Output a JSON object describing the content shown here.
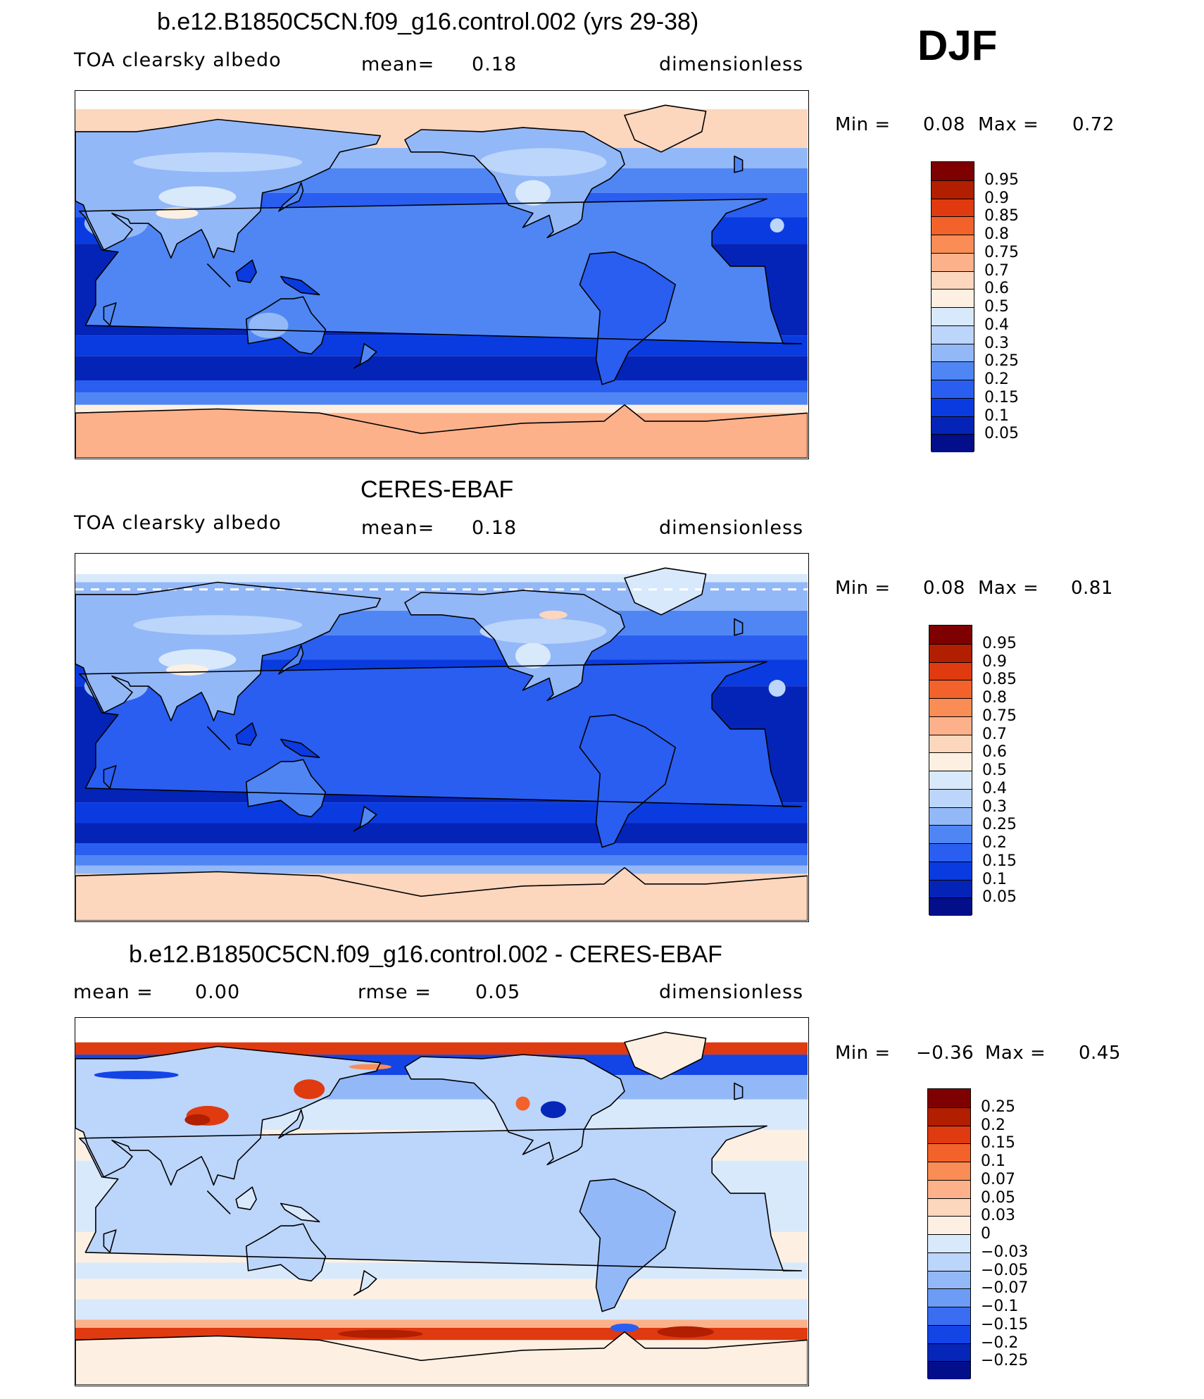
{
  "season": "DJF",
  "colorbar_colors_abs": [
    "#7f0000",
    "#b21e00",
    "#e03a10",
    "#f2622a",
    "#fa8c55",
    "#fcb18b",
    "#fcd6bd",
    "#fdf0e2",
    "#d9e9fc",
    "#bcd5fb",
    "#93b8f8",
    "#4f86f3",
    "#2a5ef0",
    "#0a3be0",
    "#0424b8",
    "#020e8a"
  ],
  "colorbar_colors_diff": [
    "#7f0000",
    "#b21e00",
    "#e03a10",
    "#f2622a",
    "#fa8c55",
    "#fcb18b",
    "#fcd6bd",
    "#fdf0e2",
    "#d9e9fc",
    "#bcd5fb",
    "#93b8f8",
    "#6c9cf5",
    "#3a6df2",
    "#1344e6",
    "#0526b9",
    "#020e8a"
  ],
  "panels": [
    {
      "title": "b.e12.B1850C5CN.f09_g16.control.002 (yrs 29-38)",
      "left_label": "TOA clearsky albedo",
      "mid_key": "mean=",
      "mid_value": "0.18",
      "units": "dimensionless",
      "min_key": "Min =",
      "min_value": "0.08",
      "max_key": "Max =",
      "max_value": "0.72",
      "colorbar_labels": [
        "0.95",
        "0.9",
        "0.85",
        "0.8",
        "0.75",
        "0.7",
        "0.6",
        "0.5",
        "0.4",
        "0.3",
        "0.25",
        "0.2",
        "0.15",
        "0.1",
        "0.05"
      ]
    },
    {
      "title": "CERES-EBAF",
      "left_label": "TOA clearsky albedo",
      "mid_key": "mean=",
      "mid_value": "0.18",
      "units": "dimensionless",
      "min_key": "Min =",
      "min_value": "0.08",
      "max_key": "Max =",
      "max_value": "0.81",
      "colorbar_labels": [
        "0.95",
        "0.9",
        "0.85",
        "0.8",
        "0.75",
        "0.7",
        "0.6",
        "0.5",
        "0.4",
        "0.3",
        "0.25",
        "0.2",
        "0.15",
        "0.1",
        "0.05"
      ]
    },
    {
      "title": "b.e12.B1850C5CN.f09_g16.control.002 - CERES-EBAF",
      "left_key": "mean =",
      "left_value": "0.00",
      "mid_key": "rmse =",
      "mid_value": "0.05",
      "units": "dimensionless",
      "min_key": "Min =",
      "min_value": "−0.36",
      "max_key": "Max =",
      "max_value": "0.45",
      "colorbar_labels": [
        "0.25",
        "0.2",
        "0.15",
        "0.1",
        "0.07",
        "0.05",
        "0.03",
        "0",
        "−0.03",
        "−0.05",
        "−0.07",
        "−0.1",
        "−0.15",
        "−0.2",
        "−0.25"
      ]
    }
  ],
  "chart_data": [
    {
      "type": "heatmap",
      "title": "b.e12.B1850C5CN.f09_g16.control.002 (yrs 29-38)",
      "variable": "TOA clearsky albedo",
      "season": "DJF",
      "units": "dimensionless",
      "mean": 0.18,
      "min": 0.08,
      "max": 0.72,
      "contour_levels": [
        0.05,
        0.1,
        0.15,
        0.2,
        0.25,
        0.3,
        0.4,
        0.5,
        0.6,
        0.7,
        0.75,
        0.8,
        0.85,
        0.9,
        0.95
      ]
    },
    {
      "type": "heatmap",
      "title": "CERES-EBAF",
      "variable": "TOA clearsky albedo",
      "season": "DJF",
      "units": "dimensionless",
      "mean": 0.18,
      "min": 0.08,
      "max": 0.81,
      "contour_levels": [
        0.05,
        0.1,
        0.15,
        0.2,
        0.25,
        0.3,
        0.4,
        0.5,
        0.6,
        0.7,
        0.75,
        0.8,
        0.85,
        0.9,
        0.95
      ]
    },
    {
      "type": "heatmap",
      "title": "b.e12.B1850C5CN.f09_g16.control.002 - CERES-EBAF",
      "season": "DJF",
      "units": "dimensionless",
      "mean": 0.0,
      "rmse": 0.05,
      "min": -0.36,
      "max": 0.45,
      "contour_levels": [
        -0.25,
        -0.2,
        -0.15,
        -0.1,
        -0.07,
        -0.05,
        -0.03,
        0,
        0.03,
        0.05,
        0.07,
        0.1,
        0.15,
        0.2,
        0.25
      ]
    }
  ]
}
